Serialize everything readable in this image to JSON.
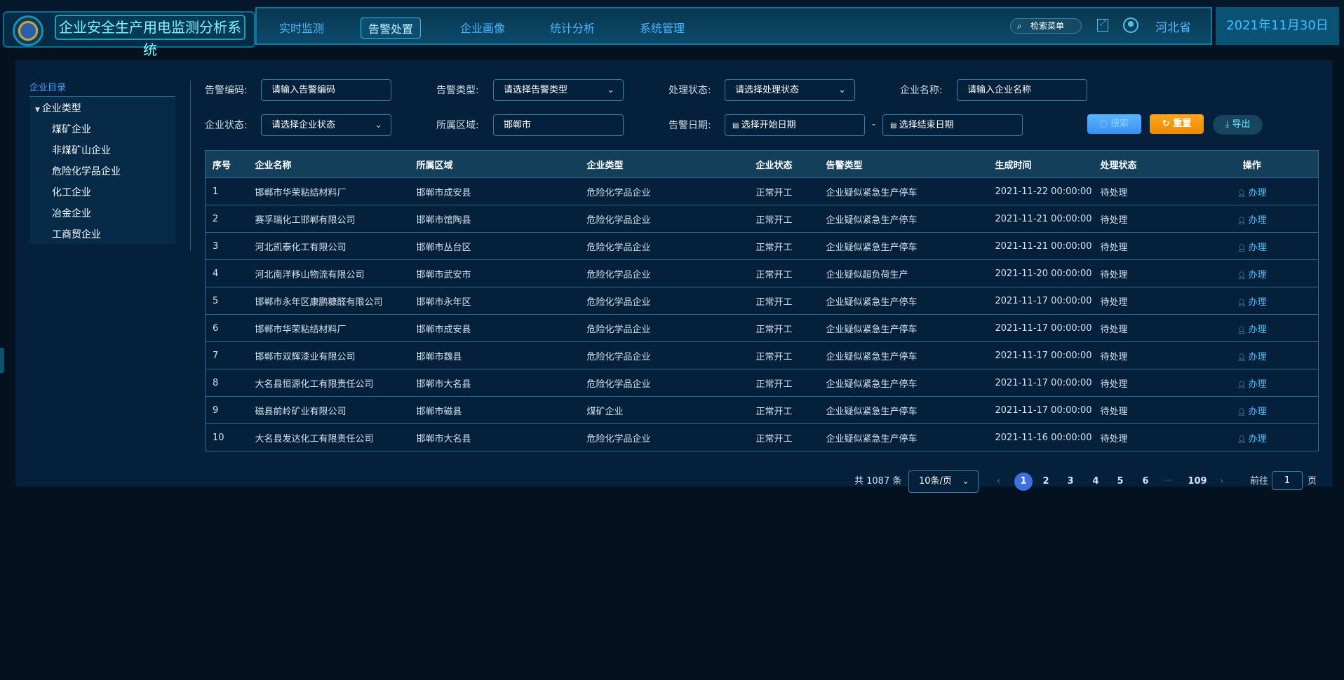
{
  "header": {
    "title": "企业安全生产用电监测分析系统",
    "nav": [
      "实时监测",
      "告警处置",
      "企业画像",
      "统计分析",
      "系统管理"
    ],
    "active_nav": 1,
    "search_menu": "检索菜单",
    "region": "河北省",
    "date": "2021年11月30日"
  },
  "sidebar": {
    "title": "企业目录",
    "group": "企业类型",
    "items": [
      "煤矿企业",
      "非煤矿山企业",
      "危险化学品企业",
      "化工企业",
      "冶金企业",
      "工商贸企业"
    ]
  },
  "filters": {
    "alarm_code_label": "告警编码:",
    "alarm_code_placeholder": "请输入告警编码",
    "alarm_type_label": "告警类型:",
    "alarm_type_placeholder": "请选择告警类型",
    "handle_status_label": "处理状态:",
    "handle_status_placeholder": "请选择处理状态",
    "company_name_label": "企业名称:",
    "company_name_placeholder": "请输入企业名称",
    "company_status_label": "企业状态:",
    "company_status_placeholder": "请选择企业状态",
    "area_label": "所属区域:",
    "area_value": "邯郸市",
    "alarm_date_label": "告警日期:",
    "start_placeholder": "选择开始日期",
    "end_placeholder": "选择结束日期",
    "date_sep": "-",
    "search": "搜索",
    "reset": "重置",
    "export": "导出"
  },
  "table": {
    "columns": [
      "序号",
      "企业名称",
      "所属区域",
      "企业类型",
      "企业状态",
      "告警类型",
      "生成时间",
      "处理状态",
      "操作"
    ],
    "rows": [
      [
        "1",
        "邯郸市华荣粘结材料厂",
        "邯郸市成安县",
        "危险化学品企业",
        "正常开工",
        "企业疑似紧急生产停车",
        "2021-11-22 00:00:00",
        "待处理",
        "办理"
      ],
      [
        "2",
        "赛孚瑞化工邯郸有限公司",
        "邯郸市馆陶县",
        "危险化学品企业",
        "正常开工",
        "企业疑似紧急生产停车",
        "2021-11-21 00:00:00",
        "待处理",
        "办理"
      ],
      [
        "3",
        "河北凯泰化工有限公司",
        "邯郸市丛台区",
        "危险化学品企业",
        "正常开工",
        "企业疑似紧急生产停车",
        "2021-11-21 00:00:00",
        "待处理",
        "办理"
      ],
      [
        "4",
        "河北南洋移山物流有限公司",
        "邯郸市武安市",
        "危险化学品企业",
        "正常开工",
        "企业疑似超负荷生产",
        "2021-11-20 00:00:00",
        "待处理",
        "办理"
      ],
      [
        "5",
        "邯郸市永年区康鹏糠醛有限公司",
        "邯郸市永年区",
        "危险化学品企业",
        "正常开工",
        "企业疑似紧急生产停车",
        "2021-11-17 00:00:00",
        "待处理",
        "办理"
      ],
      [
        "6",
        "邯郸市华荣粘结材料厂",
        "邯郸市成安县",
        "危险化学品企业",
        "正常开工",
        "企业疑似紧急生产停车",
        "2021-11-17 00:00:00",
        "待处理",
        "办理"
      ],
      [
        "7",
        "邯郸市双辉漆业有限公司",
        "邯郸市魏县",
        "危险化学品企业",
        "正常开工",
        "企业疑似紧急生产停车",
        "2021-11-17 00:00:00",
        "待处理",
        "办理"
      ],
      [
        "8",
        "大名县恒源化工有限责任公司",
        "邯郸市大名县",
        "危险化学品企业",
        "正常开工",
        "企业疑似紧急生产停车",
        "2021-11-17 00:00:00",
        "待处理",
        "办理"
      ],
      [
        "9",
        "磁县前岭矿业有限公司",
        "邯郸市磁县",
        "煤矿企业",
        "正常开工",
        "企业疑似紧急生产停车",
        "2021-11-17 00:00:00",
        "待处理",
        "办理"
      ],
      [
        "10",
        "大名县发达化工有限责任公司",
        "邯郸市大名县",
        "危险化学品企业",
        "正常开工",
        "企业疑似紧急生产停车",
        "2021-11-16 00:00:00",
        "待处理",
        "办理"
      ]
    ]
  },
  "pagination": {
    "total": "共 1087 条",
    "page_size": "10条/页",
    "pages": [
      "1",
      "2",
      "3",
      "4",
      "5",
      "6"
    ],
    "ellipsis": "···",
    "last": "109",
    "current": "1",
    "goto_label": "前往",
    "goto_value": "1",
    "page_suffix": "页"
  }
}
